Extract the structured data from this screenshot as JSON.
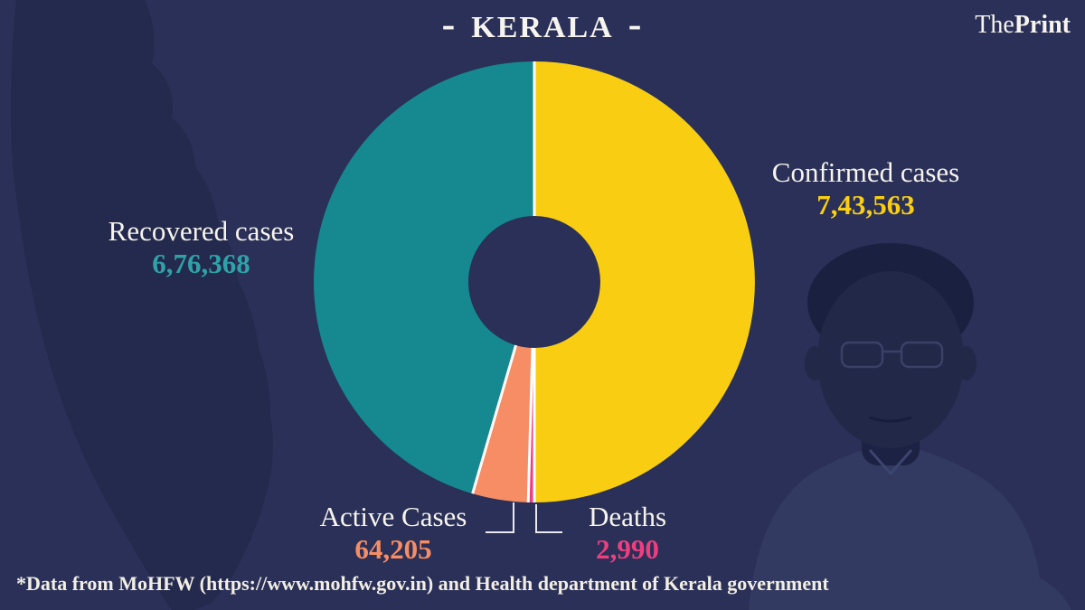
{
  "header": {
    "title": "KERALA",
    "title_dash_left": "-",
    "title_dash_right": "-",
    "brand_the": "The",
    "brand_print": "Print"
  },
  "chart_data": {
    "type": "pie",
    "subtype": "donut",
    "title": "- KERALA -",
    "start_angle_deg": 0,
    "direction": "clockwise",
    "legend_position": "around",
    "series": [
      {
        "name": "Confirmed cases",
        "value": 743563,
        "display": "7,43,563",
        "color": "#f9ce12",
        "label_color": "#f9ce12"
      },
      {
        "name": "Deaths",
        "value": 2990,
        "display": "2,990",
        "color": "#ee3e80",
        "label_color": "#ee3e80"
      },
      {
        "name": "Active Cases",
        "value": 64205,
        "display": "64,205",
        "color": "#f68d64",
        "label_color": "#f68d64"
      },
      {
        "name": "Recovered cases",
        "value": 676368,
        "display": "6,76,368",
        "color": "#15898f",
        "label_color": "#2fa2a8"
      }
    ]
  },
  "footer": {
    "source_note": "*Data from MoHFW (https://www.mohfw.gov.in) and Health department of Kerala government"
  },
  "colors": {
    "background": "#2a3057",
    "map_silhouette": "#242a4d",
    "portrait_dark": "#1a2040",
    "portrait_face": "#212848",
    "portrait_shirt": "#323a61",
    "text_primary": "#f7f4ee",
    "slice_divider": "#ffffff",
    "leader_line": "#e9e9ef"
  }
}
